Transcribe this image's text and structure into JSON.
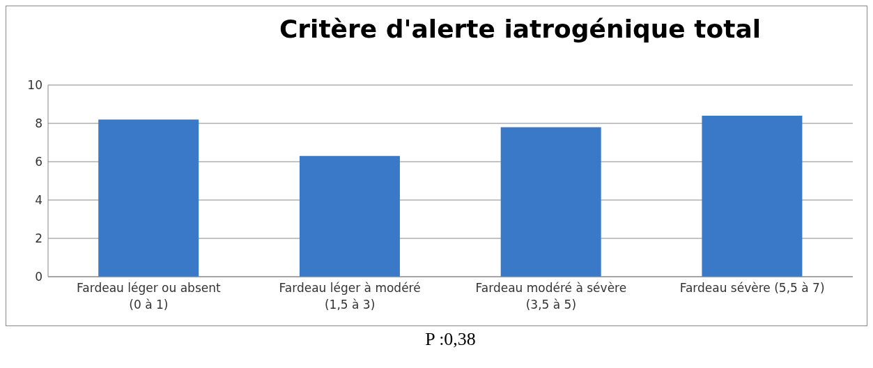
{
  "chart_data": {
    "type": "bar",
    "title": "Critère d'alerte iatrogénique total",
    "categories": [
      "Fardeau léger ou absent (0 à 1)",
      "Fardeau léger à modéré (1,5 à 3)",
      "Fardeau modéré à sévère (3,5 à 5)",
      "Fardeau sévère (5,5 à 7)"
    ],
    "values": [
      8.2,
      6.3,
      7.8,
      8.4
    ],
    "color": "#3a78c8",
    "ylim": [
      0,
      10
    ],
    "yticks": [
      0,
      2,
      4,
      6,
      8,
      10
    ],
    "grid": "y",
    "legend": false,
    "annotations": [
      "P :0,38"
    ]
  }
}
